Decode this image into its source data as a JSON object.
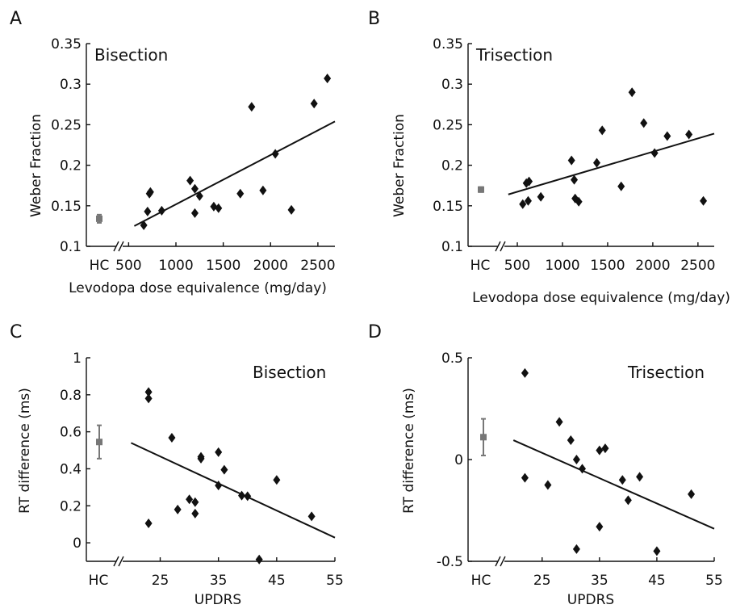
{
  "chart_data": [
    {
      "type": "scatter",
      "panel": "A",
      "title": "Bisection",
      "xlabel": "Levodopa dose equivalence (mg/day)",
      "ylabel": "Weber Fraction",
      "xlim": [
        420,
        2680
      ],
      "ylim": [
        0.1,
        0.35
      ],
      "xticks": [
        500,
        1000,
        1500,
        2000,
        2500
      ],
      "xtick_labels": [
        "500",
        "1000",
        "1500",
        "2000",
        "2500"
      ],
      "yticks": [
        0.1,
        0.15,
        0.2,
        0.25,
        0.3,
        0.35
      ],
      "ytick_labels": [
        "0.1",
        "0.15",
        "0.2",
        "0.25",
        "0.3",
        "0.35"
      ],
      "hc_label": "HC",
      "hc": {
        "mean": 0.134,
        "err": 0.005
      },
      "points": [
        {
          "x": 660,
          "y": 0.126
        },
        {
          "x": 700,
          "y": 0.143
        },
        {
          "x": 720,
          "y": 0.165
        },
        {
          "x": 730,
          "y": 0.167
        },
        {
          "x": 850,
          "y": 0.144
        },
        {
          "x": 1150,
          "y": 0.181
        },
        {
          "x": 1200,
          "y": 0.171
        },
        {
          "x": 1200,
          "y": 0.141
        },
        {
          "x": 1250,
          "y": 0.162
        },
        {
          "x": 1400,
          "y": 0.149
        },
        {
          "x": 1450,
          "y": 0.147
        },
        {
          "x": 1680,
          "y": 0.165
        },
        {
          "x": 1800,
          "y": 0.272
        },
        {
          "x": 1920,
          "y": 0.169
        },
        {
          "x": 2050,
          "y": 0.214
        },
        {
          "x": 2220,
          "y": 0.145
        },
        {
          "x": 2460,
          "y": 0.276
        },
        {
          "x": 2600,
          "y": 0.307
        }
      ],
      "fit": {
        "x1": 560,
        "y1": 0.125,
        "x2": 2680,
        "y2": 0.254
      }
    },
    {
      "type": "scatter",
      "panel": "B",
      "title": "Trisection",
      "xlabel": "Levodopa dose equivalence (mg/day)",
      "ylabel": "Weber Fraction",
      "xlim": [
        330,
        2680
      ],
      "ylim": [
        0.1,
        0.35
      ],
      "xticks": [
        500,
        1000,
        1500,
        2000,
        2500
      ],
      "xtick_labels": [
        "500",
        "1000",
        "1500",
        "2000",
        "2500"
      ],
      "yticks": [
        0.1,
        0.15,
        0.2,
        0.25,
        0.3,
        0.35
      ],
      "ytick_labels": [
        "0.1",
        "0.15",
        "0.2",
        "0.25",
        "0.3",
        "0.35"
      ],
      "hc_label": "HC",
      "hc": {
        "mean": 0.17,
        "err": 0.003
      },
      "points": [
        {
          "x": 560,
          "y": 0.152
        },
        {
          "x": 600,
          "y": 0.178
        },
        {
          "x": 620,
          "y": 0.156
        },
        {
          "x": 630,
          "y": 0.18
        },
        {
          "x": 760,
          "y": 0.161
        },
        {
          "x": 1100,
          "y": 0.206
        },
        {
          "x": 1130,
          "y": 0.182
        },
        {
          "x": 1140,
          "y": 0.159
        },
        {
          "x": 1180,
          "y": 0.155
        },
        {
          "x": 1380,
          "y": 0.203
        },
        {
          "x": 1440,
          "y": 0.243
        },
        {
          "x": 1650,
          "y": 0.174
        },
        {
          "x": 1770,
          "y": 0.29
        },
        {
          "x": 1900,
          "y": 0.252
        },
        {
          "x": 2020,
          "y": 0.215
        },
        {
          "x": 2160,
          "y": 0.236
        },
        {
          "x": 2400,
          "y": 0.238
        },
        {
          "x": 2560,
          "y": 0.156
        }
      ],
      "fit": {
        "x1": 400,
        "y1": 0.164,
        "x2": 2680,
        "y2": 0.239
      }
    },
    {
      "type": "scatter",
      "panel": "C",
      "title": "Bisection",
      "xlabel": "UPDRS",
      "ylabel": "RT difference (ms)",
      "xlim": [
        18,
        55
      ],
      "ylim": [
        -0.1,
        1
      ],
      "xticks": [
        25,
        35,
        45,
        55
      ],
      "xtick_labels": [
        "25",
        "35",
        "45",
        "55"
      ],
      "yticks": [
        0,
        0.2,
        0.4,
        0.6,
        0.8,
        1
      ],
      "ytick_labels": [
        "0",
        "0.2",
        "0.4",
        "0.6",
        "0.8",
        "1"
      ],
      "hc_label": "HC",
      "hc": {
        "mean": 0.545,
        "err": 0.09
      },
      "points": [
        {
          "x": 23,
          "y": 0.815
        },
        {
          "x": 23,
          "y": 0.78
        },
        {
          "x": 23,
          "y": 0.105
        },
        {
          "x": 27,
          "y": 0.568
        },
        {
          "x": 28,
          "y": 0.18
        },
        {
          "x": 30,
          "y": 0.235
        },
        {
          "x": 31,
          "y": 0.22
        },
        {
          "x": 31,
          "y": 0.158
        },
        {
          "x": 32,
          "y": 0.465
        },
        {
          "x": 32,
          "y": 0.455
        },
        {
          "x": 35,
          "y": 0.49
        },
        {
          "x": 35,
          "y": 0.31
        },
        {
          "x": 36,
          "y": 0.395
        },
        {
          "x": 39,
          "y": 0.255
        },
        {
          "x": 40,
          "y": 0.252
        },
        {
          "x": 42,
          "y": -0.09
        },
        {
          "x": 45,
          "y": 0.34
        },
        {
          "x": 51,
          "y": 0.143
        }
      ],
      "fit": {
        "x1": 20,
        "y1": 0.54,
        "x2": 55,
        "y2": 0.028
      }
    },
    {
      "type": "scatter",
      "panel": "D",
      "title": "Trisection",
      "xlabel": "UPDRS",
      "ylabel": "RT difference (ms)",
      "xlim": [
        18,
        55
      ],
      "ylim": [
        -0.5,
        0.5
      ],
      "xticks": [
        25,
        35,
        45,
        55
      ],
      "xtick_labels": [
        "25",
        "35",
        "45",
        "55"
      ],
      "yticks": [
        -0.5,
        0,
        0.5
      ],
      "ytick_labels": [
        "-0.5",
        "0",
        "0.5"
      ],
      "hc_label": "HC",
      "hc": {
        "mean": 0.11,
        "err": 0.09
      },
      "points": [
        {
          "x": 22,
          "y": 0.425
        },
        {
          "x": 22,
          "y": -0.09
        },
        {
          "x": 26,
          "y": -0.125
        },
        {
          "x": 28,
          "y": 0.185
        },
        {
          "x": 30,
          "y": 0.095
        },
        {
          "x": 31,
          "y": 0.0
        },
        {
          "x": 31,
          "y": -0.44
        },
        {
          "x": 32,
          "y": -0.045
        },
        {
          "x": 35,
          "y": 0.045
        },
        {
          "x": 35,
          "y": -0.33
        },
        {
          "x": 36,
          "y": 0.055
        },
        {
          "x": 39,
          "y": -0.1
        },
        {
          "x": 40,
          "y": -0.2
        },
        {
          "x": 42,
          "y": -0.085
        },
        {
          "x": 45,
          "y": -0.45
        },
        {
          "x": 51,
          "y": -0.17
        }
      ],
      "fit": {
        "x1": 20,
        "y1": 0.095,
        "x2": 55,
        "y2": -0.34
      }
    }
  ]
}
